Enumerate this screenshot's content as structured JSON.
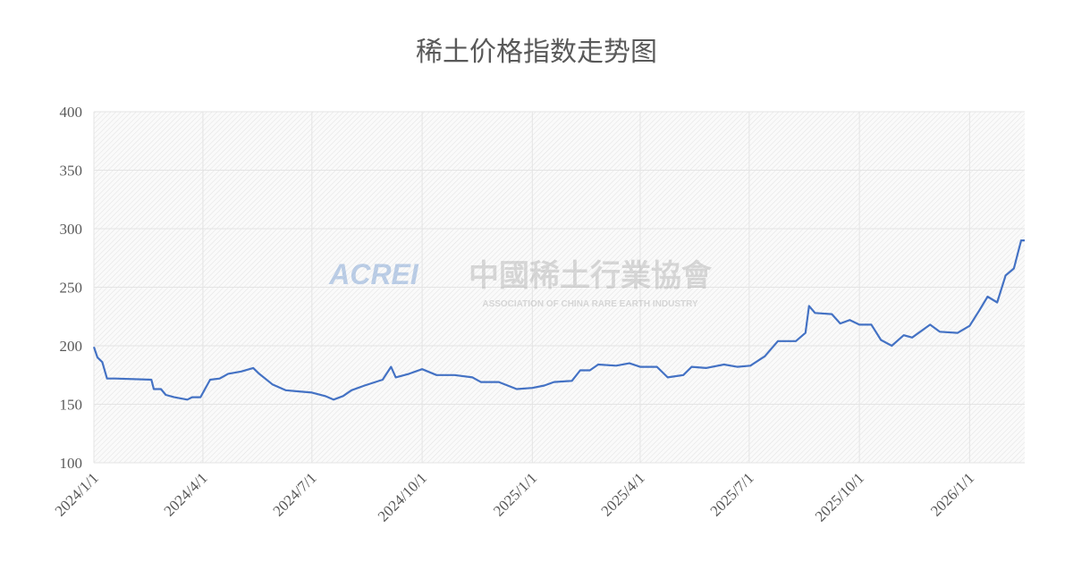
{
  "chart_data": {
    "type": "line",
    "title": "稀土价格指数走势图",
    "watermark": {
      "logo": "ACREI",
      "name": "中國稀土行業協會",
      "subtitle": "ASSOCIATION OF CHINA RARE EARTH INDUSTRY"
    },
    "x": [
      "2024/1/1",
      "2024/1/4",
      "2024/1/8",
      "2024/1/12",
      "2024/1/19",
      "2024/2/18",
      "2024/2/20",
      "2024/2/26",
      "2024/3/1",
      "2024/3/8",
      "2024/3/19",
      "2024/3/23",
      "2024/3/30",
      "2024/4/7",
      "2024/4/15",
      "2024/4/22",
      "2024/5/3",
      "2024/5/13",
      "2024/5/18",
      "2024/5/29",
      "2024/6/9",
      "2024/6/20",
      "2024/7/1",
      "2024/7/12",
      "2024/7/19",
      "2024/7/27",
      "2024/8/3",
      "2024/8/14",
      "2024/8/29",
      "2024/9/5",
      "2024/9/9",
      "2024/9/20",
      "2024/10/1",
      "2024/10/13",
      "2024/10/28",
      "2024/11/12",
      "2024/11/19",
      "2024/12/4",
      "2024/12/19",
      "2025/1/1",
      "2025/1/11",
      "2025/1/19",
      "2025/2/3",
      "2025/2/10",
      "2025/2/18",
      "2025/2/25",
      "2025/3/12",
      "2025/3/23",
      "2025/4/1",
      "2025/4/15",
      "2025/4/24",
      "2025/5/7",
      "2025/5/14",
      "2025/5/26",
      "2025/6/10",
      "2025/6/21",
      "2025/7/2",
      "2025/7/14",
      "2025/7/25",
      "2025/8/9",
      "2025/8/17",
      "2025/8/20",
      "2025/8/25",
      "2025/9/8",
      "2025/9/15",
      "2025/9/23",
      "2025/10/1",
      "2025/10/11",
      "2025/10/19",
      "2025/10/28",
      "2025/11/7",
      "2025/11/14",
      "2025/11/29",
      "2025/12/7",
      "2025/12/22",
      "2026/1/1",
      "2026/1/9",
      "2026/1/16",
      "2026/1/24",
      "2026/1/31",
      "2026/2/7",
      "2026/2/13",
      "2026/2/16"
    ],
    "values": [
      199,
      190,
      186,
      172,
      172,
      171,
      163,
      163,
      158,
      156,
      154,
      156,
      156,
      171,
      172,
      176,
      178,
      181,
      176,
      167,
      162,
      161,
      160,
      157,
      154,
      157,
      162,
      166,
      171,
      182,
      173,
      176,
      180,
      175,
      175,
      173,
      169,
      169,
      163,
      164,
      166,
      169,
      170,
      179,
      179,
      184,
      183,
      185,
      182,
      182,
      173,
      175,
      182,
      181,
      184,
      182,
      183,
      191,
      204,
      204,
      211,
      234,
      228,
      227,
      219,
      222,
      218,
      218,
      205,
      200,
      209,
      207,
      218,
      212,
      211,
      217,
      230,
      242,
      237,
      260,
      266,
      290,
      290
    ],
    "series_color": "#4472c4",
    "xlim": [
      "2024/1/1",
      "2026/2/16"
    ],
    "xticks": [
      "2024/1/1",
      "2024/4/1",
      "2024/7/1",
      "2024/10/1",
      "2025/1/1",
      "2025/4/1",
      "2025/7/1",
      "2025/10/1",
      "2026/1/1"
    ],
    "ylim": [
      100,
      400
    ],
    "yticks": [
      100,
      150,
      200,
      250,
      300,
      350,
      400
    ],
    "grid": true
  }
}
